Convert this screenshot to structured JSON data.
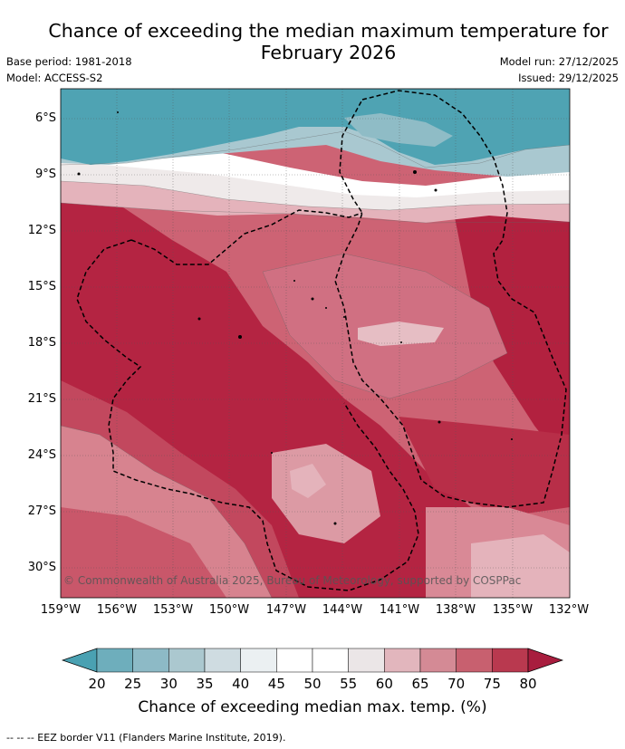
{
  "title": {
    "line1": "Chance of exceeding the median maximum temperature for",
    "line2": "February 2026"
  },
  "meta": {
    "base_period": "Base period: 1981-2018",
    "model": "Model: ACCESS-S2",
    "model_run": "Model run: 27/12/2025",
    "issued": "Issued: 29/12/2025"
  },
  "map": {
    "lat_labels": [
      "6°S",
      "9°S",
      "12°S",
      "15°S",
      "18°S",
      "21°S",
      "24°S",
      "27°S",
      "30°S"
    ],
    "lon_labels": [
      "159°W",
      "156°W",
      "153°W",
      "150°W",
      "147°W",
      "144°W",
      "141°W",
      "138°W",
      "135°W",
      "132°W"
    ],
    "copyright": "© Commonwealth of Australia 2025, Bureau of Meteorology, supported by COSPPac",
    "colors": {
      "strong_warm": "#b2213f",
      "warm": "#c2485e",
      "mid_warm": "#cf6678",
      "light_warm": "#d98996",
      "pale_warm": "#e4b3bb",
      "neutral": "#efeaea",
      "cool": "#4fa3b3",
      "pale_cool": "#a9c8d0"
    }
  },
  "colorbar": {
    "ticks": [
      "20",
      "25",
      "30",
      "35",
      "40",
      "45",
      "50",
      "55",
      "60",
      "65",
      "70",
      "75",
      "80"
    ],
    "colors": [
      "#4aa1b2",
      "#6eaebc",
      "#8dbac6",
      "#abc8cf",
      "#cfdce1",
      "#ebf0f2",
      "#ffffff",
      "#ffffff",
      "#ebe6e7",
      "#e2b6bd",
      "#d48a95",
      "#c8606f",
      "#b9394f",
      "#a81d3e"
    ],
    "label": "Chance of exceeding median max. temp. (%)"
  },
  "footer": "--  --  -- EEZ border V11 (Flanders Marine Institute, 2019)."
}
